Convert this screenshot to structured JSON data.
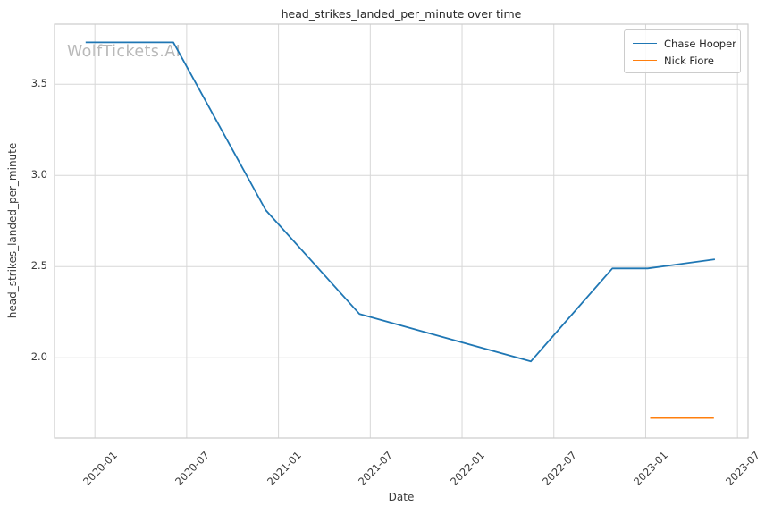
{
  "chart": {
    "title": "head_strikes_landed_per_minute over time",
    "xlabel": "Date",
    "ylabel": "head_strikes_landed_per_minute",
    "watermark": "WolfTickets.AI"
  },
  "legend": {
    "position": "upper right",
    "entries": [
      "Chase Hooper",
      "Nick Fiore"
    ]
  },
  "chart_data": {
    "type": "line",
    "title": "head_strikes_landed_per_minute over time",
    "xlabel": "Date",
    "ylabel": "head_strikes_landed_per_minute",
    "watermark": "WolfTickets.AI",
    "grid": true,
    "legend_position": "upper right",
    "x_tick_labels": [
      "2020-01",
      "2020-07",
      "2021-01",
      "2021-07",
      "2022-01",
      "2022-07",
      "2023-01",
      "2023-07"
    ],
    "y_ticks": [
      2.0,
      2.5,
      3.0,
      3.5
    ],
    "y_tick_labels": [
      "2.0",
      "2.5",
      "3.0",
      "3.5"
    ],
    "xlim": [
      "2019-10-12",
      "2023-07-22"
    ],
    "ylim": [
      1.56,
      3.83
    ],
    "series": [
      {
        "name": "Chase Hooper",
        "color": "#1f77b4",
        "points": [
          [
            "2019-12-13",
            3.73
          ],
          [
            "2020-06-05",
            3.73
          ],
          [
            "2020-12-06",
            2.81
          ],
          [
            "2021-06-10",
            2.24
          ],
          [
            "2022-05-16",
            1.98
          ],
          [
            "2022-10-26",
            2.49
          ],
          [
            "2023-01-05",
            2.49
          ],
          [
            "2023-05-17",
            2.54
          ]
        ]
      },
      {
        "name": "Nick Fiore",
        "color": "#ff7f0e",
        "points": [
          [
            "2023-01-10",
            1.67
          ],
          [
            "2023-05-15",
            1.67
          ]
        ]
      }
    ],
    "colors": {
      "grid": "#d7d7d7",
      "spine": "#cccccc",
      "text": "#262626",
      "tick_text": "#3a3a3a",
      "watermark": "#b9b9b9",
      "background": "#ffffff"
    }
  }
}
